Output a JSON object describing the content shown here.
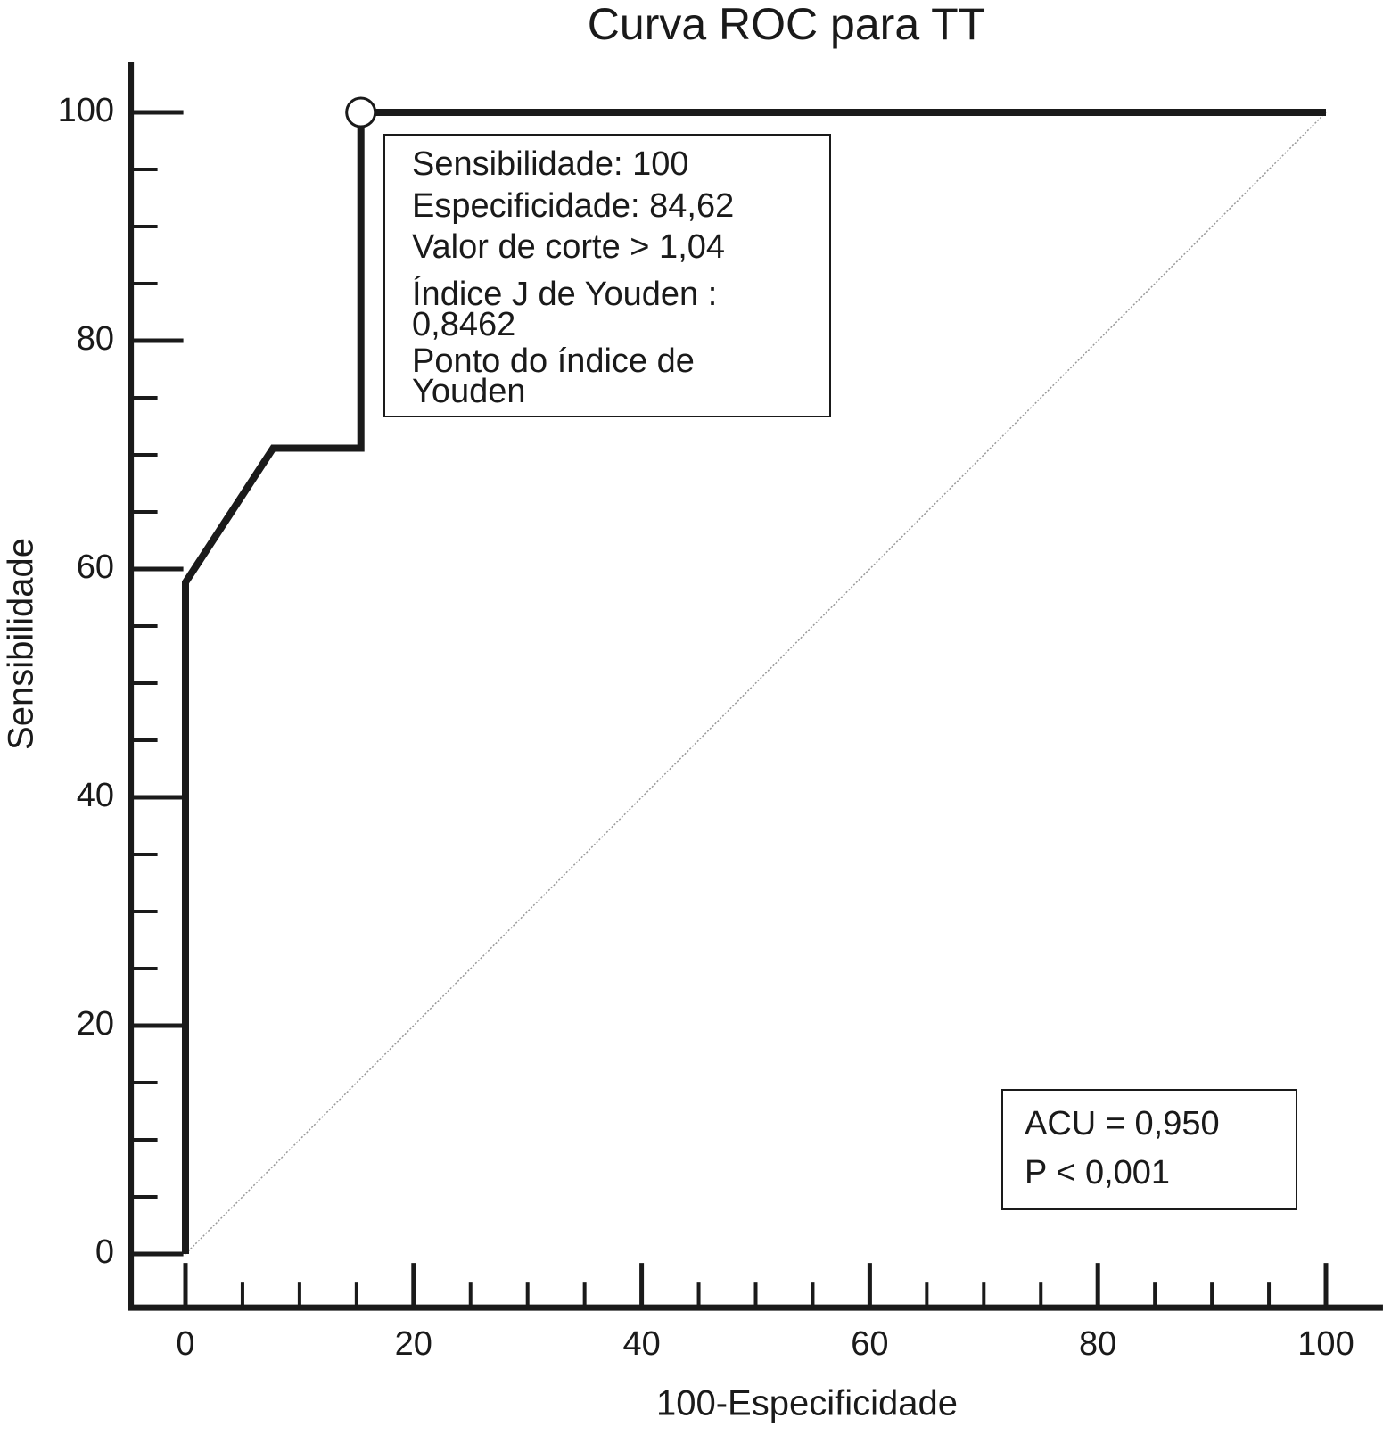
{
  "chart_data": {
    "type": "line",
    "title": "Curva ROC para TT",
    "x_label": "100-Especificidade",
    "y_label": "Sensibilidade",
    "x": [
      0,
      0,
      7.69,
      15.38,
      15.38,
      100
    ],
    "values": [
      0,
      58.82,
      70.59,
      70.59,
      100,
      100
    ],
    "color": "#1a1a1a",
    "reference_line": {
      "x": [
        0,
        100
      ],
      "y": [
        0,
        100
      ],
      "color": "#999999"
    },
    "highlight": {
      "x": 15.38,
      "y": 100
    },
    "xlim": [
      -4.8,
      105
    ],
    "ylim": [
      -4.7,
      104.4
    ],
    "xticks": [
      0,
      20,
      40,
      60,
      80,
      100
    ],
    "yticks": [
      0,
      20,
      40,
      60,
      80,
      100
    ],
    "xminorticks": [
      5,
      10,
      15,
      25,
      30,
      35,
      45,
      50,
      55,
      65,
      70,
      75,
      85,
      90,
      95
    ],
    "yminorticks": [
      5,
      10,
      15,
      25,
      30,
      35,
      45,
      50,
      55,
      65,
      70,
      75,
      85,
      90,
      95
    ],
    "grid": false,
    "annotations": [
      {
        "lines": [
          "Sensibilidade: 100",
          "Especificidade: 84,62",
          "Valor de corte > 1,04",
          "Índice J de Youden :",
          "0,8462",
          "Ponto do índice de",
          "Youden"
        ]
      },
      {
        "lines": [
          "ACU = 0,950",
          "P < 0,001"
        ]
      }
    ]
  }
}
